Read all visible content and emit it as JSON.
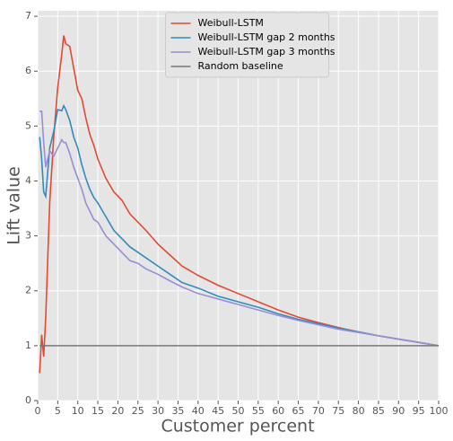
{
  "chart_data": {
    "type": "line",
    "xlabel": "Customer percent",
    "ylabel": "Lift value",
    "x": [
      0.5,
      1,
      1.5,
      2,
      3,
      4,
      5,
      6,
      6.5,
      7,
      8,
      9,
      10,
      11,
      12,
      13,
      14,
      15,
      17,
      19,
      21,
      23,
      25,
      27,
      30,
      33,
      36,
      40,
      45,
      50,
      55,
      60,
      65,
      70,
      75,
      80,
      85,
      90,
      95,
      100
    ],
    "series": [
      {
        "name": "Weibull-LSTM",
        "color": "#E24A33",
        "values": [
          0.5,
          1.2,
          0.8,
          1.5,
          3.6,
          4.8,
          5.7,
          6.3,
          6.65,
          6.5,
          6.45,
          6.05,
          5.65,
          5.5,
          5.15,
          4.85,
          4.65,
          4.4,
          4.05,
          3.8,
          3.65,
          3.4,
          3.25,
          3.1,
          2.85,
          2.65,
          2.45,
          2.28,
          2.1,
          1.95,
          1.8,
          1.65,
          1.52,
          1.42,
          1.33,
          1.25,
          1.18,
          1.12,
          1.06,
          1.0
        ]
      },
      {
        "name": "Weibull-LSTM gap 2 months",
        "color": "#348ABD",
        "values": [
          4.8,
          4.4,
          3.8,
          3.72,
          4.6,
          4.9,
          5.3,
          5.28,
          5.37,
          5.3,
          5.1,
          4.8,
          4.6,
          4.3,
          4.05,
          3.85,
          3.7,
          3.6,
          3.35,
          3.1,
          2.95,
          2.8,
          2.7,
          2.6,
          2.45,
          2.3,
          2.15,
          2.05,
          1.9,
          1.8,
          1.7,
          1.58,
          1.48,
          1.4,
          1.32,
          1.25,
          1.18,
          1.12,
          1.06,
          1.0
        ]
      },
      {
        "name": "Weibull-LSTM gap 3 months",
        "color": "#988ED5",
        "values": [
          5.27,
          5.27,
          4.7,
          4.25,
          4.55,
          4.45,
          4.6,
          4.75,
          4.7,
          4.7,
          4.5,
          4.25,
          4.05,
          3.85,
          3.6,
          3.45,
          3.3,
          3.25,
          3.0,
          2.85,
          2.7,
          2.55,
          2.5,
          2.4,
          2.3,
          2.18,
          2.07,
          1.95,
          1.85,
          1.75,
          1.65,
          1.55,
          1.46,
          1.38,
          1.3,
          1.24,
          1.18,
          1.12,
          1.06,
          1.0
        ]
      },
      {
        "name": "Random baseline",
        "color": "#777777",
        "values": [
          1,
          1,
          1,
          1,
          1,
          1,
          1,
          1,
          1,
          1,
          1,
          1,
          1,
          1,
          1,
          1,
          1,
          1,
          1,
          1,
          1,
          1,
          1,
          1,
          1,
          1,
          1,
          1,
          1,
          1,
          1,
          1,
          1,
          1,
          1,
          1,
          1,
          1,
          1,
          1
        ]
      }
    ],
    "xlim": [
      0,
      100
    ],
    "xticks": [
      0,
      5,
      10,
      15,
      20,
      25,
      30,
      35,
      40,
      45,
      50,
      55,
      60,
      65,
      70,
      75,
      80,
      85,
      90,
      95,
      100
    ],
    "ylim": [
      0,
      7.1
    ],
    "yticks": [
      0,
      1,
      2,
      3,
      4,
      5,
      6,
      7
    ],
    "grid": true,
    "legend": "upper center"
  }
}
